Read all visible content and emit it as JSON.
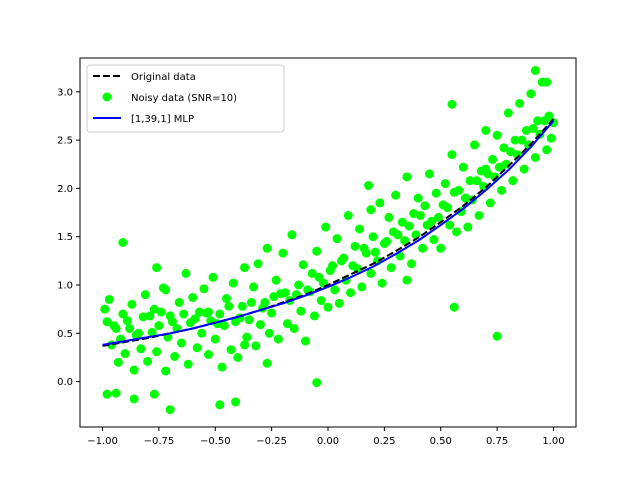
{
  "chart_data": {
    "type": "line",
    "title": "",
    "xlabel": "",
    "ylabel": "",
    "xlim": [
      -1.1,
      1.1
    ],
    "ylim": [
      -0.47,
      3.35
    ],
    "x_ticks": [
      -1.0,
      -0.75,
      -0.5,
      -0.25,
      0.0,
      0.25,
      0.5,
      0.75,
      1.0
    ],
    "x_tick_labels": [
      "−1.00",
      "−0.75",
      "−0.50",
      "−0.25",
      "0.00",
      "0.25",
      "0.50",
      "0.75",
      "1.00"
    ],
    "y_ticks": [
      0.0,
      0.5,
      1.0,
      1.5,
      2.0,
      2.5,
      3.0
    ],
    "y_tick_labels": [
      "0.0",
      "0.5",
      "1.0",
      "1.5",
      "2.0",
      "2.5",
      "3.0"
    ],
    "grid": false,
    "legend_position": "top-left",
    "series": [
      {
        "name": "Original data",
        "kind": "line",
        "color": "#000000",
        "style": "dashed",
        "x": [
          -1.0,
          -0.9,
          -0.8,
          -0.7,
          -0.6,
          -0.5,
          -0.4,
          -0.3,
          -0.2,
          -0.1,
          0.0,
          0.1,
          0.2,
          0.3,
          0.4,
          0.5,
          0.6,
          0.7,
          0.8,
          0.9,
          1.0
        ],
        "y": [
          0.37,
          0.41,
          0.45,
          0.5,
          0.55,
          0.61,
          0.67,
          0.74,
          0.82,
          0.9,
          1.0,
          1.11,
          1.22,
          1.35,
          1.49,
          1.65,
          1.82,
          2.01,
          2.23,
          2.46,
          2.72
        ]
      },
      {
        "name": "Noisy data (SNR=10)",
        "kind": "scatter",
        "color": "#00ff00",
        "x": [
          -0.98,
          -0.97,
          -0.96,
          -0.95,
          -0.93,
          -0.92,
          -0.91,
          -0.9,
          -0.88,
          -0.87,
          -0.86,
          -0.85,
          -0.83,
          -0.82,
          -0.81,
          -0.8,
          -0.78,
          -0.77,
          -0.76,
          -0.75,
          -0.73,
          -0.72,
          -0.71,
          -0.7,
          -0.68,
          -0.67,
          -0.66,
          -0.65,
          -0.63,
          -0.62,
          -0.61,
          -0.6,
          -0.58,
          -0.57,
          -0.56,
          -0.55,
          -0.53,
          -0.52,
          -0.51,
          -0.5,
          -0.48,
          -0.47,
          -0.46,
          -0.45,
          -0.43,
          -0.42,
          -0.41,
          -0.4,
          -0.38,
          -0.37,
          -0.36,
          -0.35,
          -0.33,
          -0.32,
          -0.31,
          -0.3,
          -0.28,
          -0.27,
          -0.26,
          -0.25,
          -0.23,
          -0.22,
          -0.21,
          -0.2,
          -0.18,
          -0.17,
          -0.16,
          -0.15,
          -0.13,
          -0.12,
          -0.11,
          -0.1,
          -0.08,
          -0.07,
          -0.06,
          -0.05,
          -0.03,
          -0.02,
          -0.01,
          0.0,
          0.02,
          0.03,
          0.04,
          0.05,
          0.07,
          0.08,
          0.09,
          0.1,
          0.12,
          0.13,
          0.14,
          0.15,
          0.17,
          0.18,
          0.19,
          0.2,
          0.22,
          0.23,
          0.24,
          0.25,
          0.27,
          0.28,
          0.29,
          0.3,
          0.32,
          0.33,
          0.34,
          0.35,
          0.37,
          0.38,
          0.39,
          0.4,
          0.42,
          0.43,
          0.44,
          0.45,
          0.47,
          0.48,
          0.49,
          0.5,
          0.52,
          0.53,
          0.54,
          0.55,
          0.57,
          0.58,
          0.59,
          0.6,
          0.62,
          0.63,
          0.64,
          0.65,
          0.67,
          0.68,
          0.69,
          0.7,
          0.72,
          0.73,
          0.74,
          0.75,
          0.77,
          0.78,
          0.79,
          0.8,
          0.82,
          0.83,
          0.84,
          0.85,
          0.87,
          0.88,
          0.89,
          0.9,
          0.92,
          0.93,
          0.94,
          0.95,
          0.97,
          0.98,
          0.99,
          1.0,
          -0.99,
          -0.94,
          -0.89,
          -0.84,
          -0.79,
          -0.74,
          -0.69,
          -0.64,
          -0.59,
          -0.54,
          -0.49,
          -0.44,
          -0.39,
          -0.34,
          -0.29,
          -0.24,
          -0.19,
          -0.14,
          -0.09,
          -0.04,
          0.01,
          0.06,
          0.11,
          0.16,
          0.21,
          0.26,
          0.31,
          0.36,
          0.41,
          0.46,
          0.51,
          0.56,
          0.61,
          0.66,
          0.71,
          0.76,
          0.81,
          0.86,
          0.91,
          0.96,
          -0.91,
          -0.76,
          -0.72,
          -0.53,
          -0.37,
          -0.27,
          0.19,
          0.35,
          0.55,
          0.61,
          0.75,
          0.92,
          0.97,
          0.7,
          -0.98,
          -0.94,
          -0.86,
          -0.77,
          -0.7,
          -0.48,
          -0.41,
          -0.05,
          0.56
        ],
        "y": [
          0.62,
          0.85,
          0.38,
          0.58,
          0.2,
          0.44,
          0.7,
          0.29,
          0.55,
          0.8,
          0.12,
          0.48,
          0.34,
          0.67,
          0.9,
          0.21,
          0.51,
          0.75,
          0.31,
          0.58,
          0.97,
          0.11,
          0.46,
          0.68,
          0.26,
          0.55,
          0.82,
          0.4,
          1.12,
          0.18,
          0.61,
          0.87,
          0.35,
          0.72,
          0.5,
          0.96,
          0.28,
          0.63,
          1.08,
          0.44,
          0.7,
          0.15,
          0.58,
          0.86,
          0.33,
          1.02,
          0.62,
          0.25,
          0.78,
          1.18,
          0.46,
          0.64,
          0.98,
          0.37,
          1.22,
          0.59,
          0.82,
          1.38,
          0.5,
          0.71,
          1.05,
          0.44,
          0.91,
          1.33,
          0.6,
          0.84,
          1.52,
          0.55,
          1.0,
          0.73,
          1.21,
          0.42,
          0.93,
          1.12,
          0.68,
          1.35,
          0.84,
          1.02,
          1.6,
          0.77,
          1.2,
          0.95,
          1.48,
          0.81,
          1.28,
          1.05,
          1.72,
          0.92,
          1.4,
          1.17,
          1.58,
          0.98,
          1.33,
          2.03,
          1.12,
          1.5,
          1.25,
          1.85,
          1.02,
          1.43,
          1.7,
          1.18,
          1.55,
          1.93,
          1.3,
          1.65,
          1.46,
          2.12,
          1.22,
          1.74,
          1.52,
          1.9,
          1.38,
          1.82,
          1.62,
          2.15,
          1.47,
          1.95,
          1.7,
          1.38,
          2.05,
          1.8,
          1.62,
          2.35,
          1.55,
          1.98,
          1.76,
          2.22,
          1.6,
          2.08,
          1.88,
          2.45,
          1.72,
          2.18,
          2.02,
          2.6,
          1.85,
          2.3,
          2.12,
          2.55,
          1.98,
          2.42,
          2.25,
          2.78,
          2.08,
          2.5,
          2.35,
          2.88,
          2.2,
          2.6,
          2.45,
          2.98,
          2.32,
          2.7,
          2.56,
          3.1,
          2.4,
          2.75,
          2.52,
          2.68,
          0.75,
          0.55,
          0.63,
          0.5,
          0.68,
          0.72,
          0.62,
          0.7,
          0.65,
          0.71,
          0.6,
          0.78,
          0.66,
          0.82,
          0.76,
          0.88,
          0.92,
          0.9,
          0.95,
          1.08,
          1.15,
          1.25,
          1.2,
          1.38,
          1.34,
          1.45,
          1.52,
          1.61,
          1.72,
          1.66,
          1.83,
          1.96,
          1.9,
          2.08,
          2.15,
          2.22,
          2.38,
          2.5,
          2.62,
          2.7,
          1.44,
          1.18,
          0.95,
          0.72,
          0.38,
          0.19,
          1.78,
          1.05,
          2.87,
          1.9,
          0.47,
          3.22,
          3.1,
          2.2,
          -0.13,
          -0.12,
          -0.18,
          -0.13,
          -0.29,
          -0.24,
          -0.21,
          -0.01,
          0.77
        ]
      },
      {
        "name": "[1,39,1] MLP",
        "kind": "line",
        "color": "#0000ff",
        "style": "solid",
        "x": [
          -1.0,
          -0.9,
          -0.8,
          -0.7,
          -0.6,
          -0.5,
          -0.4,
          -0.3,
          -0.2,
          -0.1,
          0.0,
          0.1,
          0.2,
          0.3,
          0.4,
          0.5,
          0.6,
          0.7,
          0.8,
          0.9,
          1.0
        ],
        "y": [
          0.38,
          0.42,
          0.46,
          0.5,
          0.55,
          0.61,
          0.67,
          0.74,
          0.81,
          0.89,
          0.98,
          1.08,
          1.19,
          1.32,
          1.46,
          1.62,
          1.79,
          1.98,
          2.19,
          2.43,
          2.7
        ]
      }
    ]
  }
}
